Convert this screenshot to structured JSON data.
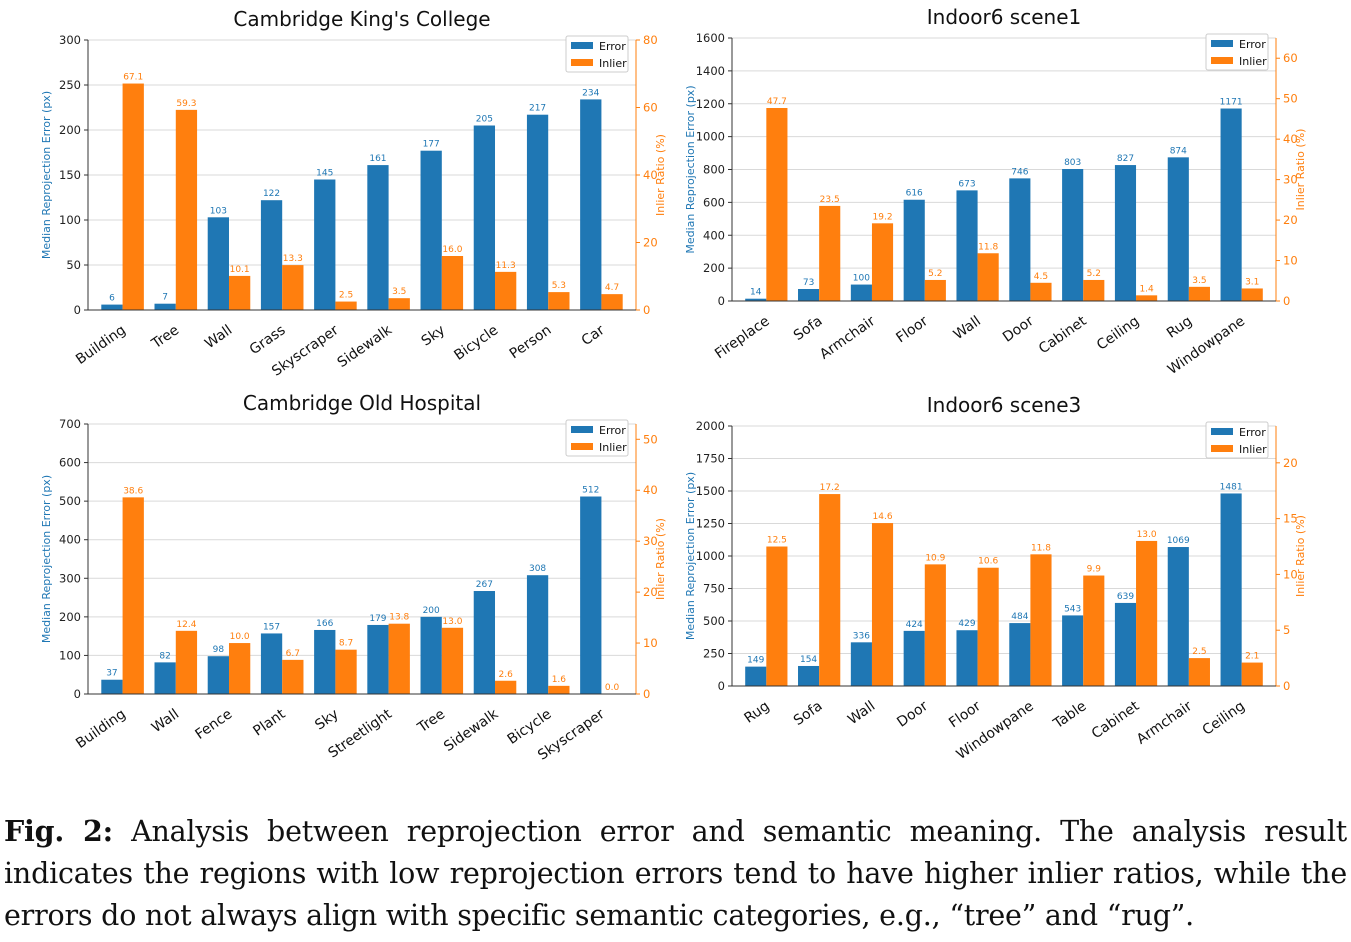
{
  "colors": {
    "error": "#1f77b4",
    "inlier": "#ff7f0e",
    "axis": "#333333"
  },
  "chart_data": [
    {
      "type": "bar",
      "title": "Cambridge King's College",
      "ylabel_left": "Median Reprojection Error (px)",
      "ylabel_right": "Inlier Ratio (%)",
      "legend": [
        "Error",
        "Inlier"
      ],
      "legend_position": "top-right",
      "categories": [
        "Building",
        "Tree",
        "Wall",
        "Grass",
        "Skyscraper",
        "Sidewalk",
        "Sky",
        "Bicycle",
        "Person",
        "Car"
      ],
      "series": [
        {
          "name": "Error",
          "axis": "left",
          "values": [
            6,
            7,
            103,
            122,
            145,
            161,
            177,
            205,
            217,
            234
          ],
          "labels": [
            "6",
            "7",
            "103",
            "122",
            "145",
            "161",
            "177",
            "205",
            "217",
            "234"
          ]
        },
        {
          "name": "Inlier",
          "axis": "right",
          "values": [
            67.1,
            59.3,
            10.1,
            13.3,
            2.5,
            3.5,
            16.0,
            11.3,
            5.3,
            4.7
          ],
          "labels": [
            "67.1",
            "59.3",
            "10.1",
            "13.3",
            "2.5",
            "3.5",
            "16.0",
            "11.3",
            "5.3",
            "4.7"
          ]
        }
      ],
      "ylim_left": [
        0,
        300
      ],
      "yticks_left": [
        "0",
        "50",
        "100",
        "150",
        "200",
        "250",
        "300"
      ],
      "ylim_right": [
        0,
        80
      ],
      "yticks_right": [
        "0",
        "20",
        "40",
        "60",
        "80"
      ],
      "grid": true
    },
    {
      "type": "bar",
      "title": "Indoor6 scene1",
      "ylabel_left": "Median Reprojection Error (px)",
      "ylabel_right": "Inlier Ratio (%)",
      "legend": [
        "Error",
        "Inlier"
      ],
      "legend_position": "top-right",
      "categories": [
        "Fireplace",
        "Sofa",
        "Armchair",
        "Floor",
        "Wall",
        "Door",
        "Cabinet",
        "Ceiling",
        "Rug",
        "Windowpane"
      ],
      "series": [
        {
          "name": "Error",
          "axis": "left",
          "values": [
            14,
            73,
            100,
            616,
            673,
            746,
            803,
            827,
            874,
            1171
          ],
          "labels": [
            "14",
            "73",
            "100",
            "616",
            "673",
            "746",
            "803",
            "827",
            "874",
            "1171"
          ]
        },
        {
          "name": "Inlier",
          "axis": "right",
          "values": [
            47.7,
            23.5,
            19.2,
            5.2,
            11.8,
            4.5,
            5.2,
            1.4,
            3.5,
            3.1
          ],
          "labels": [
            "47.7",
            "23.5",
            "19.2",
            "5.2",
            "11.8",
            "4.5",
            "5.2",
            "1.4",
            "3.5",
            "3.1"
          ]
        }
      ],
      "ylim_left": [
        0,
        1600
      ],
      "yticks_left": [
        "0",
        "200",
        "400",
        "600",
        "800",
        "1000",
        "1200",
        "1400",
        "1600"
      ],
      "ylim_right": [
        0,
        65
      ],
      "yticks_right": [
        "0",
        "10",
        "20",
        "30",
        "40",
        "50",
        "60"
      ],
      "grid": true
    },
    {
      "type": "bar",
      "title": "Cambridge Old Hospital",
      "ylabel_left": "Median Reprojection Error (px)",
      "ylabel_right": "Inlier Ratio (%)",
      "legend": [
        "Error",
        "Inlier"
      ],
      "legend_position": "top-right",
      "categories": [
        "Building",
        "Wall",
        "Fence",
        "Plant",
        "Sky",
        "Streetlight",
        "Tree",
        "Sidewalk",
        "Bicycle",
        "Skyscraper"
      ],
      "series": [
        {
          "name": "Error",
          "axis": "left",
          "values": [
            37,
            82,
            98,
            157,
            166,
            179,
            200,
            267,
            308,
            512
          ],
          "labels": [
            "37",
            "82",
            "98",
            "157",
            "166",
            "179",
            "200",
            "267",
            "308",
            "512"
          ]
        },
        {
          "name": "Inlier",
          "axis": "right",
          "values": [
            38.6,
            12.4,
            10.0,
            6.7,
            8.7,
            13.8,
            13.0,
            2.6,
            1.6,
            0.0
          ],
          "labels": [
            "38.6",
            "12.4",
            "10.0",
            "6.7",
            "8.7",
            "13.8",
            "13.0",
            "2.6",
            "1.6",
            "0.0"
          ]
        }
      ],
      "ylim_left": [
        0,
        700
      ],
      "yticks_left": [
        "0",
        "100",
        "200",
        "300",
        "400",
        "500",
        "600",
        "700"
      ],
      "ylim_right": [
        0,
        53
      ],
      "yticks_right": [
        "0",
        "10",
        "20",
        "30",
        "40",
        "50"
      ],
      "grid": true
    },
    {
      "type": "bar",
      "title": "Indoor6 scene3",
      "ylabel_left": "Median Reprojection Error (px)",
      "ylabel_right": "Inlier Ratio (%)",
      "legend": [
        "Error",
        "Inlier"
      ],
      "legend_position": "top-right",
      "categories": [
        "Rug",
        "Sofa",
        "Wall",
        "Door",
        "Floor",
        "Windowpane",
        "Table",
        "Cabinet",
        "Armchair",
        "Ceiling"
      ],
      "series": [
        {
          "name": "Error",
          "axis": "left",
          "values": [
            149,
            154,
            336,
            424,
            429,
            484,
            543,
            639,
            1069,
            1481
          ],
          "labels": [
            "149",
            "154",
            "336",
            "424",
            "429",
            "484",
            "543",
            "639",
            "1069",
            "1481"
          ]
        },
        {
          "name": "Inlier",
          "axis": "right",
          "values": [
            12.5,
            17.2,
            14.6,
            10.9,
            10.6,
            11.8,
            9.9,
            13.0,
            2.5,
            2.1
          ],
          "labels": [
            "12.5",
            "17.2",
            "14.6",
            "10.9",
            "10.6",
            "11.8",
            "9.9",
            "13.0",
            "2.5",
            "2.1"
          ]
        }
      ],
      "ylim_left": [
        0,
        2000
      ],
      "yticks_left": [
        "0",
        "250",
        "500",
        "750",
        "1000",
        "1250",
        "1500",
        "1750",
        "2000"
      ],
      "ylim_right": [
        0,
        23.3
      ],
      "yticks_right": [
        "0",
        "5",
        "10",
        "15",
        "20"
      ],
      "grid": true
    }
  ],
  "caption": {
    "label": "Fig. 2:",
    "text": "Analysis between reprojection error and semantic meaning. The analysis result indicates the regions with low reprojection errors tend to have higher inlier ratios, while the errors do not always align with specific semantic categories, e.g., “tree” and “rug”."
  }
}
